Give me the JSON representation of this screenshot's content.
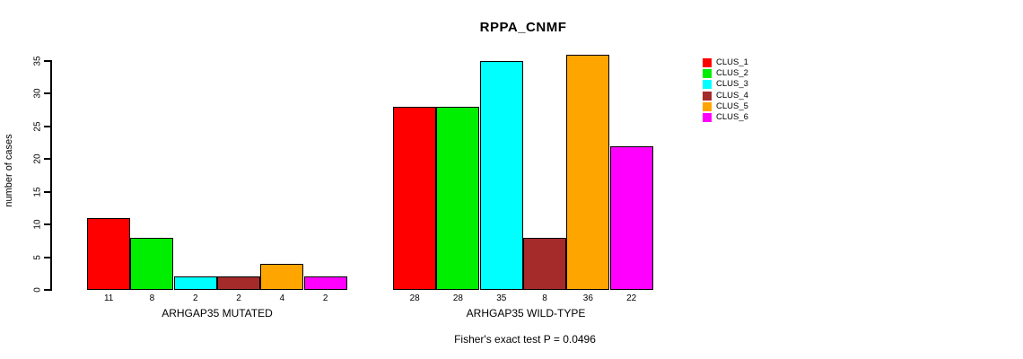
{
  "chart_data": {
    "type": "bar",
    "title": "RPPA_CNMF",
    "ylabel": "number of cases",
    "ylim": [
      0,
      35
    ],
    "yticks": [
      0,
      5,
      10,
      15,
      20,
      25,
      30,
      35
    ],
    "grid": false,
    "legend_position": "right",
    "clusters": [
      {
        "name": "CLUS_1",
        "color": "#FF0000"
      },
      {
        "name": "CLUS_2",
        "color": "#00EE00"
      },
      {
        "name": "CLUS_3",
        "color": "#00FFFF"
      },
      {
        "name": "CLUS_4",
        "color": "#A52A2A"
      },
      {
        "name": "CLUS_5",
        "color": "#FFA500"
      },
      {
        "name": "CLUS_6",
        "color": "#FF00FF"
      }
    ],
    "groups": [
      {
        "label": "ARHGAP35 MUTATED",
        "values": [
          11,
          8,
          2,
          2,
          4,
          2
        ]
      },
      {
        "label": "ARHGAP35 WILD-TYPE",
        "values": [
          28,
          28,
          35,
          8,
          36,
          22
        ]
      }
    ],
    "annotation": "Fisher's exact test P = 0.0496"
  }
}
